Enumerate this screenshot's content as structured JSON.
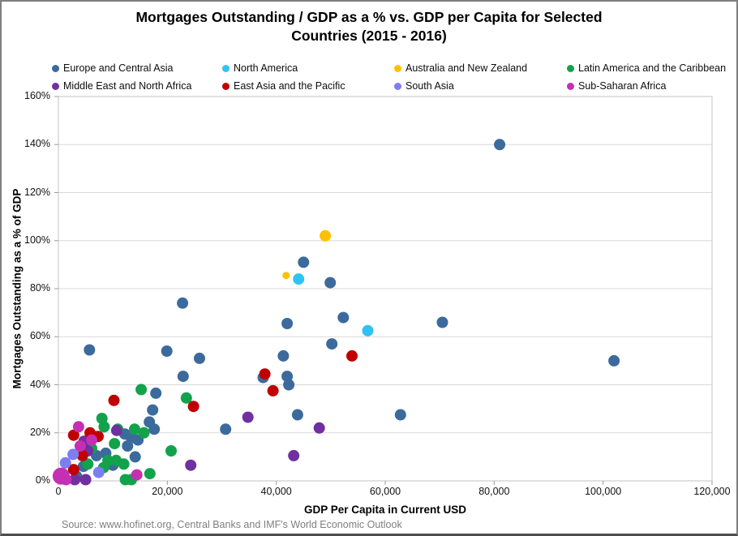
{
  "header": {
    "title_line1": "Mortgages Outstanding / GDP as a % vs. GDP per Capita for Selected",
    "title_line2": "Countries (2015 - 2016)"
  },
  "source": "Source: www.hofinet.org, Central Banks and IMF's World Economic Outlook",
  "chart_data": {
    "type": "scatter",
    "title": "Mortgages Outstanding / GDP as a % vs. GDP per Capita for Selected Countries (2015 - 2016)",
    "xlabel": "GDP Per Capita in Current USD",
    "ylabel": "Mortgages Outstanding as a % of GDP",
    "xlim": [
      0,
      120000
    ],
    "ylim": [
      0,
      160
    ],
    "x_ticks": [
      "0",
      "20,000",
      "40,000",
      "60,000",
      "80,000",
      "100,000",
      "120,000"
    ],
    "y_ticks": [
      "0%",
      "20%",
      "40%",
      "60%",
      "80%",
      "100%",
      "120%",
      "140%",
      "160%"
    ],
    "grid": "horizontal",
    "legend_position": "top",
    "x_unit": "USD",
    "y_unit": "percent of GDP",
    "series": [
      {
        "name": "Europe and Central Asia",
        "color": "#3C6A9C",
        "points": [
          [
            81000,
            140
          ],
          [
            102000,
            50
          ],
          [
            45000,
            91
          ],
          [
            49900,
            82.5
          ],
          [
            22800,
            74
          ],
          [
            52300,
            68
          ],
          [
            70500,
            66
          ],
          [
            42000,
            65.5
          ],
          [
            50200,
            57
          ],
          [
            41300,
            52
          ],
          [
            5700,
            54.5
          ],
          [
            19900,
            54
          ],
          [
            25900,
            51
          ],
          [
            22900,
            43.5
          ],
          [
            37600,
            43
          ],
          [
            42000,
            43.5
          ],
          [
            42300,
            40
          ],
          [
            17900,
            36.5
          ],
          [
            17300,
            29.5
          ],
          [
            43900,
            27.5
          ],
          [
            62800,
            27.5
          ],
          [
            30700,
            21.5
          ],
          [
            16700,
            24.5
          ],
          [
            17600,
            21.5
          ],
          [
            12200,
            19.5
          ],
          [
            13400,
            18
          ],
          [
            14600,
            17
          ],
          [
            12700,
            14.5
          ],
          [
            14100,
            10
          ],
          [
            10000,
            6.5
          ],
          [
            7000,
            10.5
          ],
          [
            8700,
            11.5
          ],
          [
            4600,
            6
          ],
          [
            3300,
            2
          ]
        ]
      },
      {
        "name": "North America",
        "color": "#2EC3F4",
        "points": [
          [
            44100,
            84
          ],
          [
            56800,
            62.5
          ]
        ]
      },
      {
        "name": "Australia and New Zealand",
        "color": "#FFC000",
        "points": [
          [
            49000,
            102
          ],
          [
            41800,
            85.5,
            4.5
          ]
        ]
      },
      {
        "name": "Latin America and the Caribbean",
        "color": "#12A24C",
        "points": [
          [
            15200,
            38
          ],
          [
            23500,
            34.5
          ],
          [
            8000,
            26
          ],
          [
            8400,
            22.5
          ],
          [
            10900,
            21.5
          ],
          [
            14000,
            21.5
          ],
          [
            15700,
            20
          ],
          [
            10300,
            15.5
          ],
          [
            6100,
            13.5
          ],
          [
            20700,
            12.5
          ],
          [
            9100,
            8.5
          ],
          [
            10600,
            8.5
          ],
          [
            12000,
            7
          ],
          [
            5400,
            7
          ],
          [
            8300,
            5.5
          ],
          [
            16800,
            3
          ],
          [
            12300,
            0.5
          ],
          [
            13400,
            0.5
          ],
          [
            400,
            1
          ]
        ]
      },
      {
        "name": "Middle East and North Africa",
        "color": "#7030A0",
        "points": [
          [
            34800,
            26.5
          ],
          [
            47900,
            22
          ],
          [
            43200,
            10.5
          ],
          [
            24300,
            6.5
          ],
          [
            10700,
            21
          ],
          [
            5400,
            12.5
          ],
          [
            4700,
            16.5
          ],
          [
            5000,
            0.5
          ],
          [
            3000,
            0.5
          ]
        ]
      },
      {
        "name": "East Asia and the Pacific",
        "color": "#C00000",
        "points": [
          [
            53900,
            52
          ],
          [
            37900,
            44.5
          ],
          [
            39400,
            37.5
          ],
          [
            24800,
            31
          ],
          [
            10200,
            33.5
          ],
          [
            2800,
            19
          ],
          [
            5800,
            20
          ],
          [
            7300,
            18.5
          ],
          [
            4400,
            10.5
          ],
          [
            2800,
            4.7
          ]
        ]
      },
      {
        "name": "South Asia",
        "color": "#7D7EF2",
        "points": [
          [
            1300,
            7.5
          ],
          [
            2700,
            11
          ],
          [
            7400,
            3.5
          ],
          [
            600,
            2.5
          ]
        ]
      },
      {
        "name": "Sub-Saharan Africa",
        "color": "#C42FB4",
        "points": [
          [
            3700,
            22.5
          ],
          [
            6100,
            17
          ],
          [
            4000,
            14.5
          ],
          [
            14400,
            2.5
          ],
          [
            500,
            2,
            10.5
          ],
          [
            1400,
            0.5
          ]
        ]
      }
    ]
  }
}
